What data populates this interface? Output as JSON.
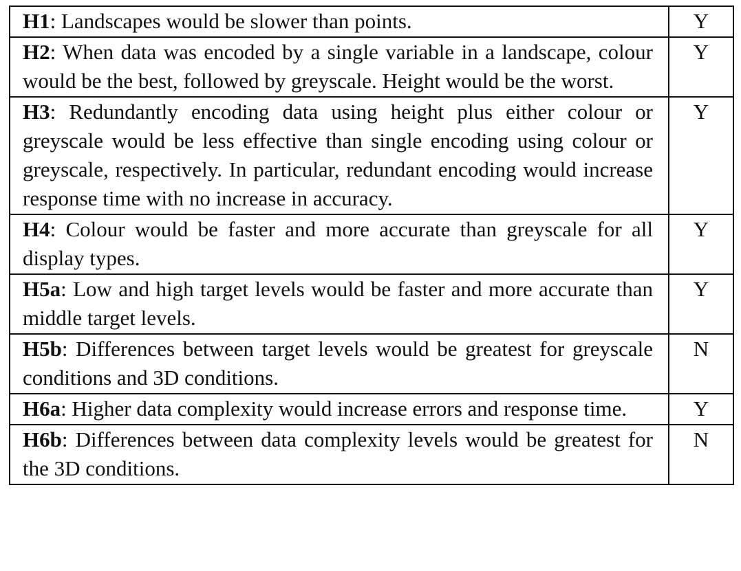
{
  "hypotheses": [
    {
      "id": "H1",
      "text": ": Landscapes would be slower than points.",
      "result": "Y"
    },
    {
      "id": "H2",
      "text": ": When data was encoded by a single variable in a landscape, colour would be the best, followed by greyscale. Height would be the worst.",
      "result": "Y"
    },
    {
      "id": "H3",
      "text": ": Redundantly encoding data using height plus either colour or greyscale would be less effective than single encoding using colour or greyscale, respectively. In particular, redundant encoding would increase response time with no increase in accuracy.",
      "result": "Y"
    },
    {
      "id": "H4",
      "text": ": Colour would be faster and more accurate than greyscale for all display types.",
      "result": "Y"
    },
    {
      "id": "H5a",
      "text": ": Low and high target levels would be faster and more accurate than middle target levels.",
      "result": "Y"
    },
    {
      "id": "H5b",
      "text": ": Differences between target levels would be greatest for greyscale conditions and 3D conditions.",
      "result": "N"
    },
    {
      "id": "H6a",
      "text": ": Higher data complexity would increase errors and response time.",
      "result": "Y"
    },
    {
      "id": "H6b",
      "text": ": Differences between data complexity levels would be greatest for the 3D conditions.",
      "result": "N"
    }
  ]
}
